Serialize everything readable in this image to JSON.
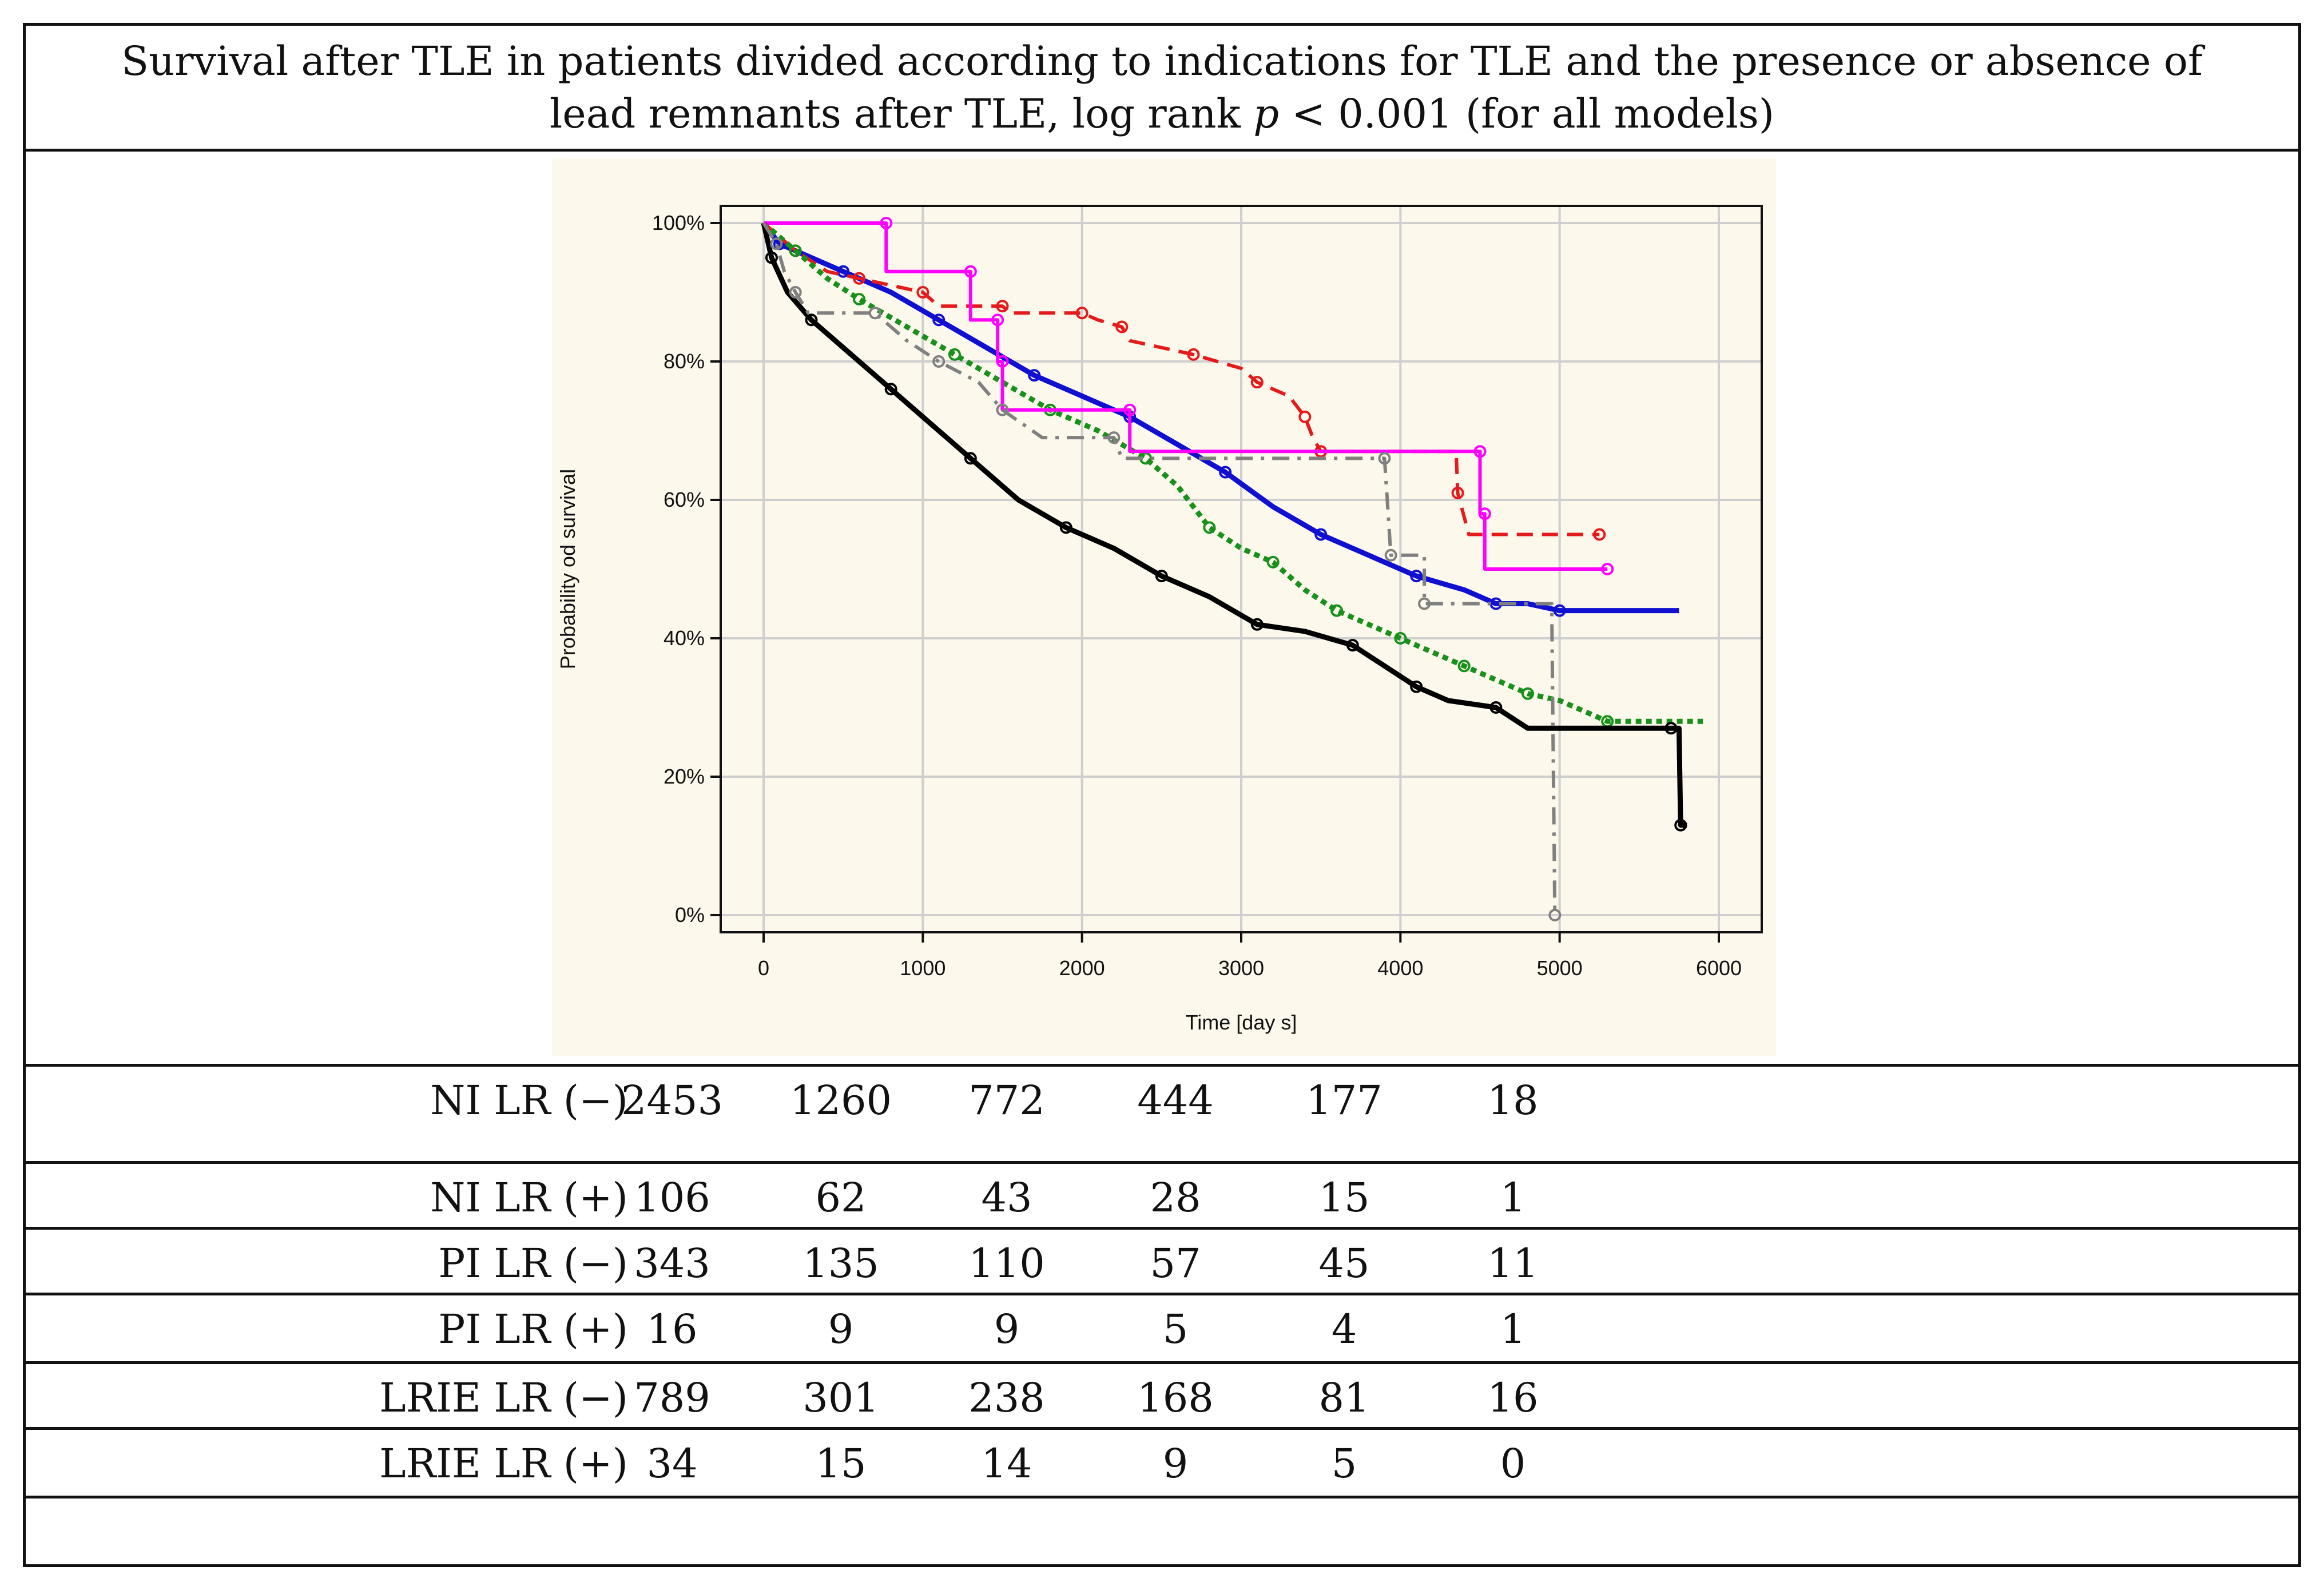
{
  "title": {
    "line1": "Survival after TLE in patients divided according to indications for TLE and the presence or absence of",
    "line2_prefix": "lead remnants after TLE, log rank ",
    "line2_p": "p",
    "line2_suffix": " < 0.001 (for all models)"
  },
  "chart_data": {
    "type": "line",
    "xlabel": "Time [day s]",
    "ylabel": "Probability od survival",
    "xlim": [
      0,
      6000
    ],
    "ylim": [
      0,
      100
    ],
    "x_ticks": [
      0,
      1000,
      2000,
      3000,
      4000,
      5000,
      6000
    ],
    "x_tick_labels": [
      "0",
      "1000",
      "2000",
      "3000",
      "4000",
      "5000",
      "6000"
    ],
    "y_ticks": [
      0,
      20,
      40,
      60,
      80,
      100
    ],
    "y_tick_labels": [
      "0%",
      "20%",
      "40%",
      "60%",
      "80%",
      "100%"
    ],
    "grid": true,
    "legend_position": "bottom",
    "series": [
      {
        "name": "NI LR (-)",
        "color": "#1010d0",
        "dash": "solid",
        "points": [
          [
            0,
            100
          ],
          [
            100,
            97
          ],
          [
            300,
            95
          ],
          [
            500,
            93
          ],
          [
            800,
            90
          ],
          [
            1100,
            86
          ],
          [
            1400,
            82
          ],
          [
            1700,
            78
          ],
          [
            2000,
            75
          ],
          [
            2300,
            72
          ],
          [
            2600,
            68
          ],
          [
            2900,
            64
          ],
          [
            3200,
            59
          ],
          [
            3500,
            55
          ],
          [
            3800,
            52
          ],
          [
            4100,
            49
          ],
          [
            4400,
            47
          ],
          [
            4600,
            45
          ],
          [
            4800,
            45
          ],
          [
            5000,
            44
          ],
          [
            5750,
            44
          ]
        ]
      },
      {
        "name": "NI LR(+)",
        "color": "#e51a1a",
        "dash": "dashed",
        "points": [
          [
            0,
            100
          ],
          [
            200,
            96
          ],
          [
            400,
            93
          ],
          [
            600,
            92
          ],
          [
            800,
            91
          ],
          [
            1000,
            90
          ],
          [
            1100,
            88
          ],
          [
            1500,
            88
          ],
          [
            1550,
            87
          ],
          [
            2000,
            87
          ],
          [
            2100,
            86
          ],
          [
            2250,
            85
          ],
          [
            2300,
            83
          ],
          [
            2700,
            81
          ],
          [
            3000,
            79
          ],
          [
            3100,
            77
          ],
          [
            3300,
            75
          ],
          [
            3400,
            72
          ],
          [
            3450,
            69
          ],
          [
            3500,
            67
          ],
          [
            4350,
            67
          ],
          [
            4360,
            61
          ],
          [
            4430,
            55
          ],
          [
            5250,
            55
          ]
        ]
      },
      {
        "name": "PI LR(-)",
        "color": "#18901a",
        "dash": "dotted",
        "points": [
          [
            0,
            100
          ],
          [
            200,
            96
          ],
          [
            400,
            92
          ],
          [
            600,
            89
          ],
          [
            900,
            85
          ],
          [
            1200,
            81
          ],
          [
            1500,
            77
          ],
          [
            1800,
            73
          ],
          [
            2100,
            70
          ],
          [
            2400,
            66
          ],
          [
            2600,
            62
          ],
          [
            2800,
            56
          ],
          [
            3000,
            53
          ],
          [
            3200,
            51
          ],
          [
            3400,
            47
          ],
          [
            3600,
            44
          ],
          [
            3800,
            42
          ],
          [
            4000,
            40
          ],
          [
            4200,
            38
          ],
          [
            4400,
            36
          ],
          [
            4600,
            34
          ],
          [
            4800,
            32
          ],
          [
            5000,
            31
          ],
          [
            5300,
            28
          ],
          [
            5900,
            28
          ]
        ]
      },
      {
        "name": "PI LR(+)",
        "color": "#ff00ff",
        "dash": "solid",
        "points": [
          [
            0,
            100
          ],
          [
            770,
            100
          ],
          [
            770,
            93
          ],
          [
            1300,
            93
          ],
          [
            1300,
            86
          ],
          [
            1470,
            86
          ],
          [
            1470,
            80
          ],
          [
            1500,
            80
          ],
          [
            1500,
            73
          ],
          [
            2300,
            73
          ],
          [
            2300,
            67
          ],
          [
            4500,
            67
          ],
          [
            4500,
            58
          ],
          [
            4530,
            58
          ],
          [
            4530,
            50
          ],
          [
            5300,
            50
          ]
        ]
      },
      {
        "name": "LRIE LR(-)",
        "color": "#000000",
        "dash": "solid",
        "points": [
          [
            0,
            100
          ],
          [
            50,
            95
          ],
          [
            150,
            90
          ],
          [
            300,
            86
          ],
          [
            500,
            82
          ],
          [
            800,
            76
          ],
          [
            1000,
            72
          ],
          [
            1300,
            66
          ],
          [
            1600,
            60
          ],
          [
            1900,
            56
          ],
          [
            2200,
            53
          ],
          [
            2500,
            49
          ],
          [
            2800,
            46
          ],
          [
            3100,
            42
          ],
          [
            3400,
            41
          ],
          [
            3700,
            39
          ],
          [
            3900,
            36
          ],
          [
            4100,
            33
          ],
          [
            4300,
            31
          ],
          [
            4600,
            30
          ],
          [
            4800,
            27
          ],
          [
            5700,
            27
          ],
          [
            5750,
            27
          ],
          [
            5760,
            13
          ],
          [
            5800,
            13
          ]
        ]
      },
      {
        "name": "LRIE LR(+)",
        "color": "#808080",
        "dash": "dashdot",
        "points": [
          [
            0,
            100
          ],
          [
            80,
            97
          ],
          [
            130,
            93
          ],
          [
            200,
            90
          ],
          [
            280,
            87
          ],
          [
            700,
            87
          ],
          [
            900,
            83
          ],
          [
            1100,
            80
          ],
          [
            1350,
            77
          ],
          [
            1500,
            73
          ],
          [
            1750,
            69
          ],
          [
            2200,
            69
          ],
          [
            2250,
            66
          ],
          [
            3900,
            66
          ],
          [
            3920,
            59
          ],
          [
            3940,
            52
          ],
          [
            4150,
            52
          ],
          [
            4150,
            45
          ],
          [
            4950,
            45
          ],
          [
            4970,
            0
          ]
        ]
      }
    ]
  },
  "risk_table": {
    "rows": [
      {
        "label": "NI LR (−)",
        "values": [
          "2453",
          "1260",
          "772",
          "444",
          "177",
          "18"
        ]
      },
      {
        "label": "NI LR (+)",
        "values": [
          "106",
          "62",
          "43",
          "28",
          "15",
          "1"
        ]
      },
      {
        "label": "PI LR (−)",
        "values": [
          "343",
          "135",
          "110",
          "57",
          "45",
          "11"
        ]
      },
      {
        "label": "PI LR (+)",
        "values": [
          "16",
          "9",
          "9",
          "5",
          "4",
          "1"
        ]
      },
      {
        "label": "LRIE LR (−)",
        "values": [
          "789",
          "301",
          "238",
          "168",
          "81",
          "16"
        ]
      },
      {
        "label": "LRIE LR (+)",
        "values": [
          "34",
          "15",
          "14",
          "9",
          "5",
          "0"
        ]
      }
    ]
  }
}
